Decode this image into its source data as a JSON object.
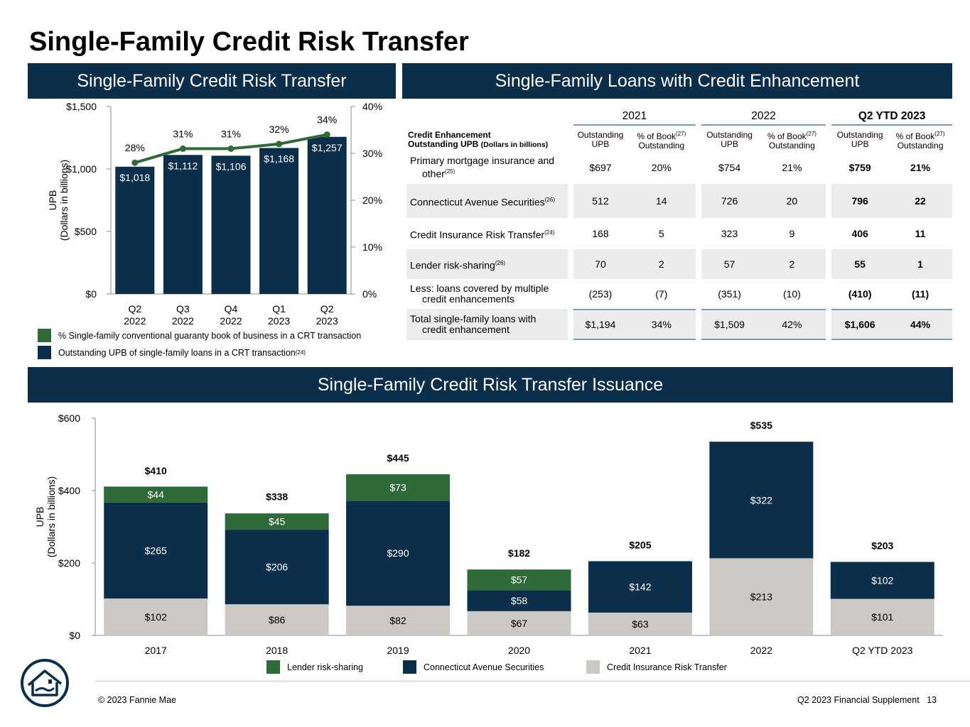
{
  "page": {
    "title": "Single-Family Credit Risk Transfer",
    "footer_copyright": "© 2023 Fannie Mae",
    "footer_doc": "Q2 2023 Financial Supplement",
    "page_number": "13"
  },
  "colors": {
    "navy": "#0b2f4b",
    "green": "#2e6b38",
    "gray": "#ccc9c5",
    "rule": "#7a9ab5"
  },
  "banners": {
    "crt": "Single-Family Credit Risk Transfer",
    "credit_enhancement": "Single-Family Loans with Credit Enhancement",
    "issuance": "Single-Family Credit Risk Transfer Issuance"
  },
  "crt_chart": {
    "legend_pct": "% Single-family conventional guaranty book of business in a CRT transaction",
    "legend_upb": "Outstanding UPB of single-family loans in a CRT transaction",
    "legend_upb_note": "(24)"
  },
  "ce_table": {
    "header_label_line1": "Credit Enhancement",
    "header_label_line2": "Outstanding UPB",
    "header_label_unit": "(Dollars in billions)",
    "years": [
      "2021",
      "2022",
      "Q2 YTD 2023"
    ],
    "col_upb_1": "Outstanding",
    "col_upb_2": "UPB",
    "col_pct_1": "% of Book",
    "col_pct_note": "(27)",
    "col_pct_2": "Outstanding",
    "rows": [
      {
        "label_a": "Primary mortgage insurance and",
        "label_b": "other",
        "note": "(25)",
        "v": [
          "$697",
          "20%",
          "$754",
          "21%",
          "$759",
          "21%"
        ]
      },
      {
        "label_a": "Connecticut Avenue Securities",
        "label_b": "",
        "note": "(26)",
        "v": [
          "512",
          "14",
          "726",
          "20",
          "796",
          "22"
        ]
      },
      {
        "label_a": "Credit Insurance Risk Transfer",
        "label_b": "",
        "note": "(24)",
        "v": [
          "168",
          "5",
          "323",
          "9",
          "406",
          "11"
        ]
      },
      {
        "label_a": "Lender risk-sharing",
        "label_b": "",
        "note": "(26)",
        "v": [
          "70",
          "2",
          "57",
          "2",
          "55",
          "1"
        ]
      },
      {
        "label_a": "Less: loans covered by multiple",
        "label_b": "credit enhancements",
        "note": "",
        "v": [
          "(253)",
          "(7)",
          "(351)",
          "(10)",
          "(410)",
          "(11)"
        ]
      },
      {
        "label_a": "Total single-family loans with",
        "label_b": "credit enhancement",
        "note": "",
        "v": [
          "$1,194",
          "34%",
          "$1,509",
          "42%",
          "$1,606",
          "44%"
        ]
      }
    ]
  },
  "issuance_chart": {
    "legend": [
      "Lender risk-sharing",
      "Connecticut Avenue Securities",
      "Credit Insurance Risk Transfer"
    ]
  },
  "chart_data": [
    {
      "type": "bar",
      "categories": [
        "Q2\n2022",
        "Q3\n2022",
        "Q4\n2022",
        "Q1\n2023",
        "Q2\n2023"
      ],
      "series": [
        {
          "name": "Outstanding UPB of single-family loans in a CRT transaction",
          "type": "bar",
          "axis": "left",
          "values": [
            1018,
            1112,
            1106,
            1168,
            1257
          ],
          "labels": [
            "$1,018",
            "$1,112",
            "$1,106",
            "$1,168",
            "$1,257"
          ]
        },
        {
          "name": "% Single-family conventional guaranty book of business in a CRT transaction",
          "type": "line",
          "axis": "right",
          "values": [
            28,
            31,
            31,
            32,
            34
          ],
          "labels": [
            "28%",
            "31%",
            "31%",
            "32%",
            "34%"
          ]
        }
      ],
      "ylabel": "UPB\n(Dollars in billions)",
      "ylim": [
        0,
        1500
      ],
      "yticks": [
        "$0",
        "$500",
        "$1,000",
        "$1,500"
      ],
      "y2lim": [
        0,
        40
      ],
      "y2ticks": [
        "0%",
        "10%",
        "20%",
        "30%",
        "40%"
      ],
      "grid": false,
      "legend_position": "bottom"
    },
    {
      "type": "bar",
      "stacked": true,
      "categories": [
        "2017",
        "2018",
        "2019",
        "2020",
        "2021",
        "2022",
        "Q2 YTD 2023"
      ],
      "series": [
        {
          "name": "Credit Insurance Risk Transfer",
          "values": [
            102,
            86,
            82,
            67,
            63,
            213,
            101
          ],
          "labels": [
            "$102",
            "$86",
            "$82",
            "$67",
            "$63",
            "$213",
            "$101"
          ]
        },
        {
          "name": "Connecticut Avenue Securities",
          "values": [
            265,
            206,
            290,
            58,
            142,
            322,
            102
          ],
          "labels": [
            "$265",
            "$206",
            "$290",
            "$58",
            "$142",
            "$322",
            "$102"
          ]
        },
        {
          "name": "Lender risk-sharing",
          "values": [
            44,
            45,
            73,
            57,
            0,
            0,
            0
          ],
          "labels": [
            "$44",
            "$45",
            "$73",
            "$57",
            "",
            "",
            ""
          ]
        }
      ],
      "totals": [
        410,
        338,
        445,
        182,
        205,
        535,
        203
      ],
      "total_labels": [
        "$410",
        "$338",
        "$445",
        "$182",
        "$205",
        "$535",
        "$203"
      ],
      "ylabel": "UPB\n(Dollars in billions)",
      "ylim": [
        0,
        600
      ],
      "yticks": [
        "$0",
        "$200",
        "$400",
        "$600"
      ],
      "grid": false,
      "legend_position": "bottom"
    }
  ]
}
